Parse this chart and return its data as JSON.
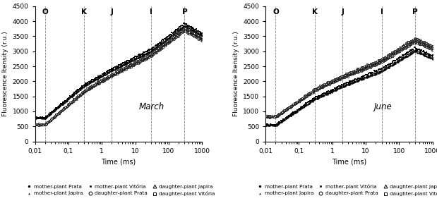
{
  "title_left": "March",
  "title_right": "June",
  "ylabel": "Fluorescence Itensity (r.u.)",
  "xlabel": "Time (ms)",
  "ylim": [
    0,
    4500
  ],
  "yticks": [
    0,
    500,
    1000,
    1500,
    2000,
    2500,
    3000,
    3500,
    4000,
    4500
  ],
  "xticks": [
    0.01,
    0.1,
    1,
    10,
    100,
    1000
  ],
  "xtick_labels": [
    "0,01",
    "0,1",
    "1",
    "10",
    "100",
    "1000"
  ],
  "bg_color": "#ffffff",
  "vlines": [
    0.02,
    0.3,
    2,
    30,
    300
  ],
  "vline_labels": [
    "O",
    "K",
    "J",
    "I",
    "P"
  ],
  "legend_rows": [
    [
      "mother-plant Prata",
      "o",
      true,
      "mother-plant Japira",
      "^",
      true,
      "mother-plant Vitória",
      "s",
      true
    ],
    [
      "daughter-plant Prata",
      "o",
      false,
      "daughter-plant Japira",
      "^",
      false,
      "daughter-plant Vitória",
      "s",
      false
    ]
  ],
  "march": {
    "mother_prata_F0": 780,
    "mother_prata_Fp": 3820,
    "mother_japira_F0": 785,
    "mother_japira_Fp": 3870,
    "mother_vitoria_F0": 795,
    "mother_vitoria_Fp": 3920,
    "daughter_prata_F0": 560,
    "daughter_prata_Fp": 3680,
    "daughter_japira_F0": 565,
    "daughter_japira_Fp": 3760,
    "daughter_vitoria_F0": 570,
    "daughter_vitoria_Fp": 3790
  },
  "june": {
    "mother_prata_F0": 540,
    "mother_prata_Fp": 3000,
    "mother_japira_F0": 548,
    "mother_japira_Fp": 3060,
    "mother_vitoria_F0": 558,
    "mother_vitoria_Fp": 3115,
    "daughter_prata_F0": 820,
    "daughter_prata_Fp": 3310,
    "daughter_japira_F0": 833,
    "daughter_japira_Fp": 3385,
    "daughter_vitoria_F0": 840,
    "daughter_vitoria_Fp": 3440
  },
  "marker_size": 1.8
}
